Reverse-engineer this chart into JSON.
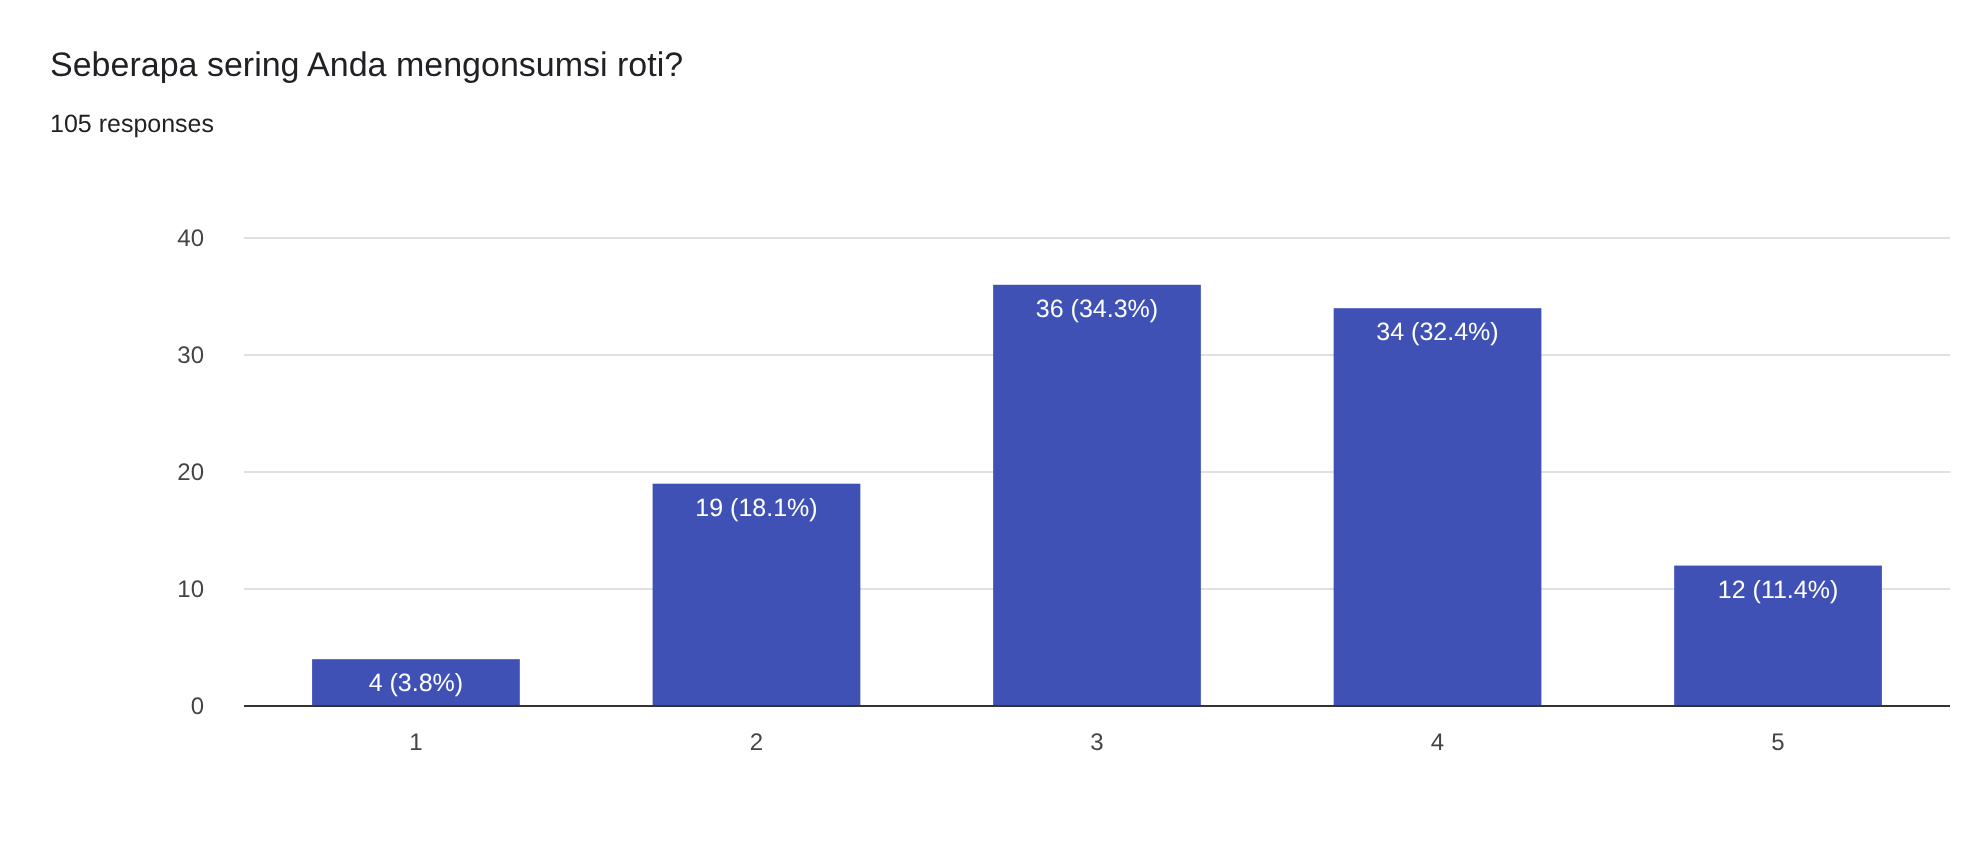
{
  "chart_data": {
    "type": "bar",
    "title": "Seberapa sering Anda mengonsumsi roti?",
    "subtitle": "105 responses",
    "categories": [
      "1",
      "2",
      "3",
      "4",
      "5"
    ],
    "values": [
      4,
      19,
      36,
      34,
      12
    ],
    "value_labels": [
      "4 (3.8%)",
      "19 (18.1%)",
      "36 (34.3%)",
      "34 (32.4%)",
      "12 (11.4%)"
    ],
    "color": "#3f51b5",
    "ylim": [
      0,
      40
    ],
    "yticks": [
      0,
      10,
      20,
      30,
      40
    ],
    "grid": "y"
  }
}
